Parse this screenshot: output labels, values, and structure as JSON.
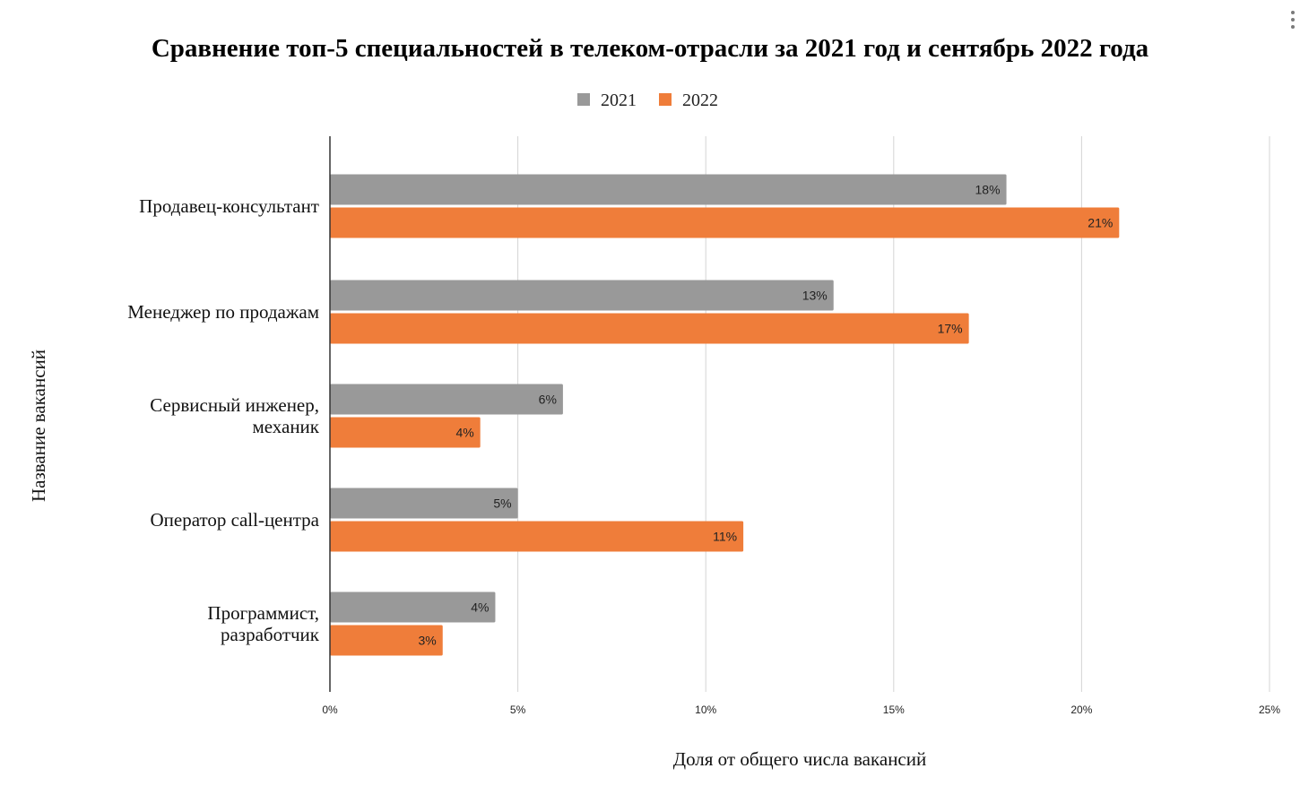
{
  "chart_data": {
    "type": "bar",
    "orientation": "horizontal",
    "title": "Сравнение топ-5 специальностей в телеком-отрасли за 2021 год и сентябрь 2022 года",
    "xlabel": "Доля от общего числа вакансий",
    "ylabel": "Название вакансий",
    "categories": [
      [
        "Продавец-консультант"
      ],
      [
        "Менеджер по продажам"
      ],
      [
        "Сервисный инженер,",
        "механик"
      ],
      [
        "Оператор call-центра"
      ],
      [
        "Программист,",
        "разработчик"
      ]
    ],
    "series": [
      {
        "name": "2021",
        "color": "#999999",
        "values": [
          18,
          13.4,
          6.2,
          5,
          4.4
        ],
        "labels": [
          "18%",
          "13%",
          "6%",
          "5%",
          "4%"
        ]
      },
      {
        "name": "2022",
        "color": "#ef7d3a",
        "values": [
          21,
          17,
          4,
          11,
          3
        ],
        "labels": [
          "21%",
          "17%",
          "4%",
          "11%",
          "3%"
        ]
      }
    ],
    "xlim": [
      0,
      25
    ],
    "xticks": [
      0,
      5,
      10,
      15,
      20,
      25
    ],
    "xtick_labels": [
      "0%",
      "5%",
      "10%",
      "15%",
      "20%",
      "25%"
    ],
    "grid": true,
    "legend_position": "top-center"
  },
  "menu": {
    "icon": "more-vert-icon"
  }
}
